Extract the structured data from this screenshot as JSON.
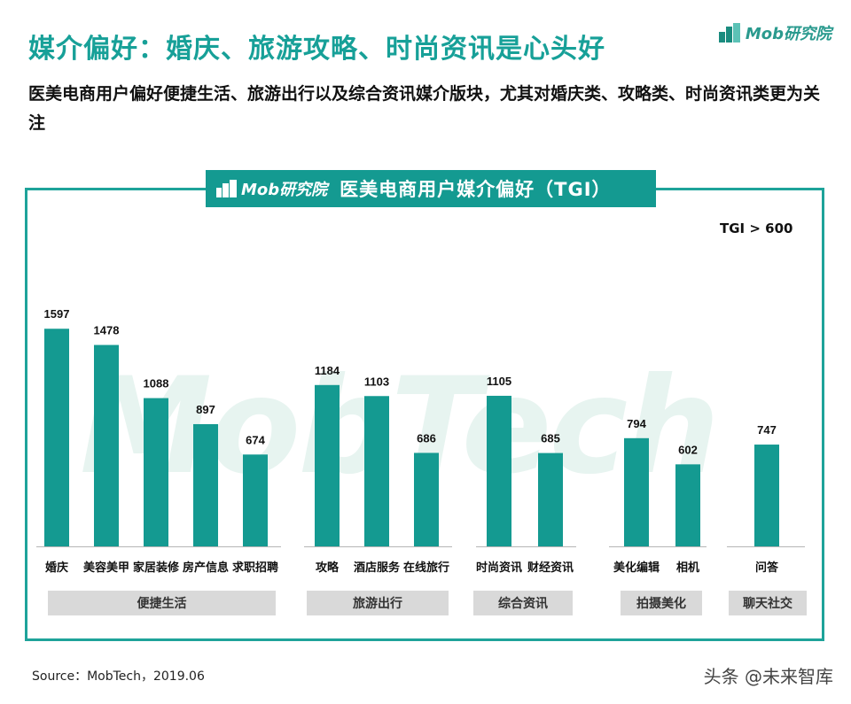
{
  "header": {
    "title": "媒介偏好：婚庆、旅游攻略、时尚资讯是心头好",
    "subtitle": "医美电商用户偏好便捷生活、旅游出行以及综合资讯媒介版块，尤其对婚庆类、攻略类、时尚资讯类更为关注",
    "logo_text": "Mob研究院"
  },
  "banner": {
    "logo_text": "Mob研究院",
    "title": "医美电商用户媒介偏好（TGI）"
  },
  "threshold_note": "TGI > 600",
  "watermark": "MobTech",
  "footer": {
    "source": "Source：MobTech，2019.06",
    "credit": "头条 @未来智库"
  },
  "colors": {
    "accent": "#17a098",
    "bar": "#149a91",
    "group_bg": "#d9d9d9"
  },
  "chart_data": {
    "type": "bar",
    "title": "医美电商用户媒介偏好（TGI）",
    "categories": [
      "婚庆",
      "美容美甲",
      "家居装修",
      "房产信息",
      "求职招聘",
      "攻略",
      "酒店服务",
      "在线旅行",
      "时尚资讯",
      "财经资讯",
      "美化编辑",
      "相机",
      "问答"
    ],
    "values": [
      1597,
      1478,
      1088,
      897,
      674,
      1184,
      1103,
      686,
      1105,
      685,
      794,
      602,
      747
    ],
    "groups": [
      {
        "name": "便捷生活",
        "count": 5
      },
      {
        "name": "旅游出行",
        "count": 3
      },
      {
        "name": "综合资讯",
        "count": 2
      },
      {
        "name": "拍摄美化",
        "count": 2
      },
      {
        "name": "聊天社交",
        "count": 1
      }
    ],
    "ylim": [
      0,
      1800
    ],
    "xlabel": "",
    "ylabel": ""
  }
}
